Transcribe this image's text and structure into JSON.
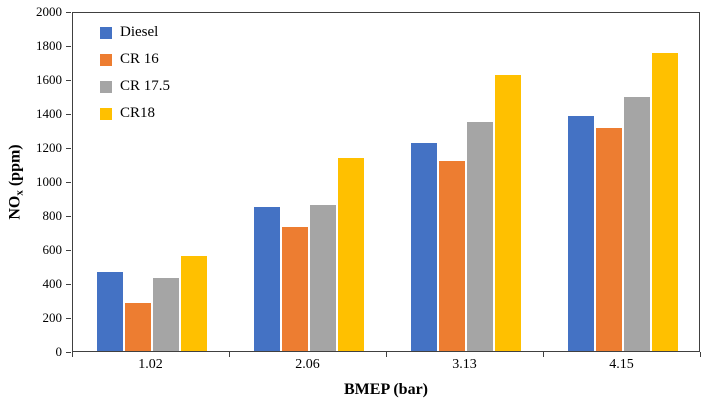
{
  "chart_data": {
    "type": "bar",
    "title": "",
    "xlabel": "BMEP (bar)",
    "ylabel": "NOx (ppm)",
    "ylabel_prefix": "NO",
    "ylabel_sub": "x",
    "ylabel_suffix": " (ppm)",
    "categories": [
      "1.02",
      "2.06",
      "3.13",
      "4.15"
    ],
    "series": [
      {
        "name": "Diesel",
        "color": "#4472C4",
        "values": [
          470,
          855,
          1230,
          1390
        ]
      },
      {
        "name": "CR 16",
        "color": "#ED7D31",
        "values": [
          285,
          735,
          1125,
          1320
        ]
      },
      {
        "name": "CR 17.5",
        "color": "#A5A5A5",
        "values": [
          430,
          865,
          1355,
          1505
        ]
      },
      {
        "name": "CR18",
        "color": "#FFC000",
        "values": [
          560,
          1140,
          1635,
          1765
        ]
      }
    ],
    "ylim": [
      0,
      2000
    ],
    "ytick_step": 200,
    "yticks": [
      "0",
      "200",
      "400",
      "600",
      "800",
      "1000",
      "1200",
      "1400",
      "1600",
      "1800",
      "2000"
    ],
    "grid": false,
    "legend_position": "top-left-inside",
    "axis_color": "#404040"
  }
}
